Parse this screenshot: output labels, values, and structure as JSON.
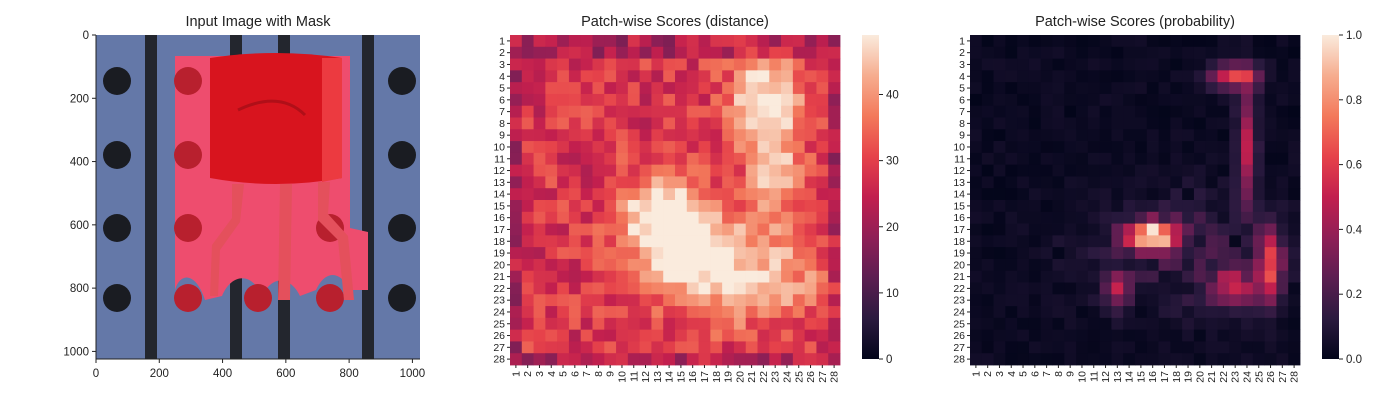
{
  "colors": {
    "mask_red": "#d8141e",
    "background_blue": "#6478a8",
    "slot_dark": "#23262e",
    "hole_dark": "#1a1c22",
    "rocket_low": "#03051a",
    "rocket_high": "#faebdd"
  },
  "chart_data": [
    {
      "type": "image",
      "title": "Input Image with Mask",
      "xticks": [
        0,
        200,
        400,
        600,
        800,
        1000
      ],
      "yticks": [
        0,
        200,
        400,
        600,
        800,
        1000
      ],
      "xlim": [
        0,
        1024
      ],
      "ylim": [
        1024,
        0
      ]
    },
    {
      "type": "heatmap",
      "title": "Patch-wise Scores (distance)",
      "colormap": "rocket",
      "grid_size": 28,
      "xticklabels": [
        "1",
        "2",
        "3",
        "4",
        "5",
        "6",
        "7",
        "8",
        "9",
        "10",
        "11",
        "12",
        "13",
        "14",
        "15",
        "16",
        "17",
        "18",
        "19",
        "20",
        "21",
        "22",
        "23",
        "24",
        "25",
        "26",
        "27",
        "28"
      ],
      "yticklabels": [
        "1",
        "2",
        "3",
        "4",
        "5",
        "6",
        "7",
        "8",
        "9",
        "10",
        "11",
        "12",
        "13",
        "14",
        "15",
        "16",
        "17",
        "18",
        "19",
        "20",
        "21",
        "22",
        "23",
        "24",
        "25",
        "26",
        "27",
        "28"
      ],
      "colorbar": {
        "vmin": 0,
        "vmax": 49,
        "ticks": [
          0,
          10,
          20,
          30,
          40
        ]
      }
    },
    {
      "type": "heatmap",
      "title": "Patch-wise Scores (probability)",
      "colormap": "rocket",
      "grid_size": 28,
      "xticklabels": [
        "1",
        "2",
        "3",
        "4",
        "5",
        "6",
        "7",
        "8",
        "9",
        "10",
        "11",
        "12",
        "13",
        "14",
        "15",
        "16",
        "17",
        "18",
        "19",
        "20",
        "21",
        "22",
        "23",
        "24",
        "25",
        "26",
        "27",
        "28"
      ],
      "yticklabels": [
        "1",
        "2",
        "3",
        "4",
        "5",
        "6",
        "7",
        "8",
        "9",
        "10",
        "11",
        "12",
        "13",
        "14",
        "15",
        "16",
        "17",
        "18",
        "19",
        "20",
        "21",
        "22",
        "23",
        "24",
        "25",
        "26",
        "27",
        "28"
      ],
      "colorbar": {
        "vmin": 0.0,
        "vmax": 1.0,
        "ticks": [
          "0.0",
          "0.2",
          "0.4",
          "0.6",
          "0.8",
          "1.0"
        ]
      }
    }
  ]
}
